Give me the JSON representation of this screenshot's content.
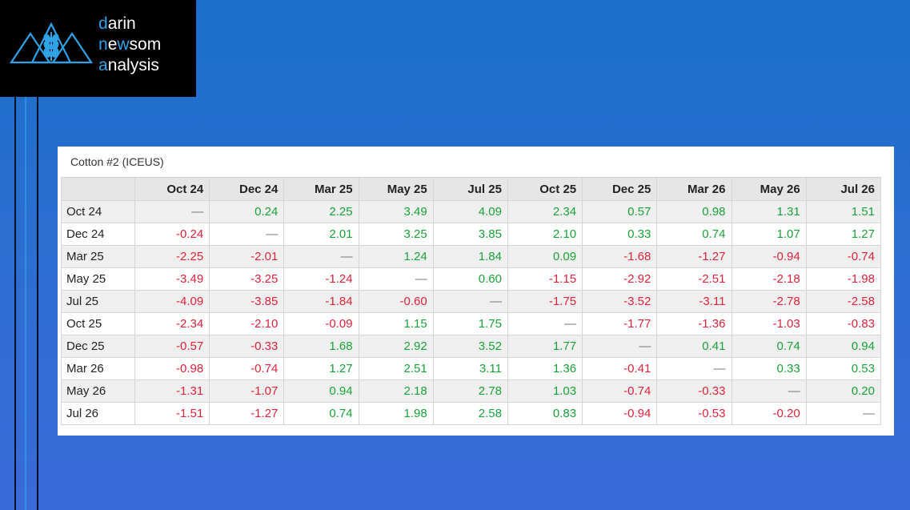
{
  "brand": {
    "line1_first": "d",
    "line1_rest": "arin",
    "line2_first": "n",
    "line2_mid": "e",
    "line2_accent": "w",
    "line2_rest": "som",
    "line3_first": "a",
    "line3_rest": "nalysis",
    "accent_color": "#2fa3e6"
  },
  "chart_data": {
    "type": "table",
    "title": "Cotton #2 (ICEUS)",
    "columns": [
      "Oct 24",
      "Dec 24",
      "Mar 25",
      "May 25",
      "Jul 25",
      "Oct 25",
      "Dec 25",
      "Mar 26",
      "May 26",
      "Jul 26"
    ],
    "rows": [
      {
        "label": "Oct 24",
        "values": [
          "—",
          "0.24",
          "2.25",
          "3.49",
          "4.09",
          "2.34",
          "0.57",
          "0.98",
          "1.31",
          "1.51"
        ]
      },
      {
        "label": "Dec 24",
        "values": [
          "-0.24",
          "—",
          "2.01",
          "3.25",
          "3.85",
          "2.10",
          "0.33",
          "0.74",
          "1.07",
          "1.27"
        ]
      },
      {
        "label": "Mar 25",
        "values": [
          "-2.25",
          "-2.01",
          "—",
          "1.24",
          "1.84",
          "0.09",
          "-1.68",
          "-1.27",
          "-0.94",
          "-0.74"
        ]
      },
      {
        "label": "May 25",
        "values": [
          "-3.49",
          "-3.25",
          "-1.24",
          "—",
          "0.60",
          "-1.15",
          "-2.92",
          "-2.51",
          "-2.18",
          "-1.98"
        ]
      },
      {
        "label": "Jul 25",
        "values": [
          "-4.09",
          "-3.85",
          "-1.84",
          "-0.60",
          "—",
          "-1.75",
          "-3.52",
          "-3.11",
          "-2.78",
          "-2.58"
        ]
      },
      {
        "label": "Oct 25",
        "values": [
          "-2.34",
          "-2.10",
          "-0.09",
          "1.15",
          "1.75",
          "—",
          "-1.77",
          "-1.36",
          "-1.03",
          "-0.83"
        ]
      },
      {
        "label": "Dec 25",
        "values": [
          "-0.57",
          "-0.33",
          "1.68",
          "2.92",
          "3.52",
          "1.77",
          "—",
          "0.41",
          "0.74",
          "0.94"
        ]
      },
      {
        "label": "Mar 26",
        "values": [
          "-0.98",
          "-0.74",
          "1.27",
          "2.51",
          "3.11",
          "1.36",
          "-0.41",
          "—",
          "0.33",
          "0.53"
        ]
      },
      {
        "label": "May 26",
        "values": [
          "-1.31",
          "-1.07",
          "0.94",
          "2.18",
          "2.78",
          "1.03",
          "-0.74",
          "-0.33",
          "—",
          "0.20"
        ]
      },
      {
        "label": "Jul 26",
        "values": [
          "-1.51",
          "-1.27",
          "0.74",
          "1.98",
          "2.58",
          "0.83",
          "-0.94",
          "-0.53",
          "-0.20",
          "—"
        ]
      }
    ],
    "positive_color": "#1aa33a",
    "negative_color": "#e0223a"
  }
}
